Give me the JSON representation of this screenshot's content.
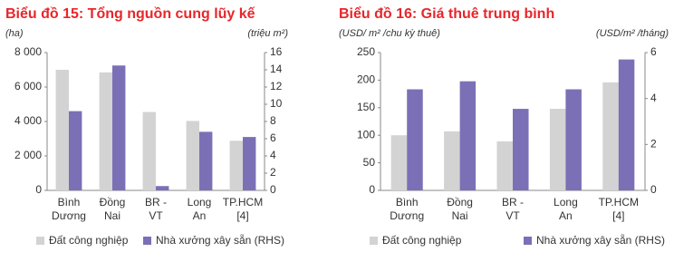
{
  "chart_data": [
    {
      "type": "bar",
      "title": "Biểu đồ 15: Tổng nguồn cung lũy kế",
      "y_label": "(ha)",
      "y2_label": "(triệu m²)",
      "categories": [
        "Bình\nDương",
        "Đồng\nNai",
        "BR -\nVT",
        "Long\nAn",
        "TP.HCM\n[4]"
      ],
      "series": [
        {
          "name": "Đất công nghiệp",
          "color": "#d3d3d3",
          "values": [
            7000,
            6850,
            4550,
            4030,
            2880
          ]
        },
        {
          "name": "Nhà xưởng xây sẵn (RHS)",
          "color": "#7b70b6",
          "axis": "y2",
          "values": [
            9.2,
            14.5,
            0.5,
            6.8,
            6.2
          ]
        }
      ],
      "ylim": [
        0,
        8000
      ],
      "yticks": [
        0,
        {
          "value": 2000,
          "label": "2 000"
        },
        {
          "value": 4000,
          "label": "4 000"
        },
        {
          "value": 6000,
          "label": "6 000"
        },
        {
          "value": 8000,
          "label": "8 000"
        }
      ],
      "y2lim": [
        0,
        16
      ],
      "y2ticks": [
        0,
        2,
        4,
        6,
        8,
        10,
        12,
        14,
        16
      ]
    },
    {
      "type": "bar",
      "title": "Biểu đồ 16: Giá thuê trung bình",
      "y_label": "(USD/ m² /chu kỳ thuê)",
      "y2_label": "(USD/m² /tháng)",
      "categories": [
        "Bình\nDương",
        "Đồng\nNai",
        "BR -\nVT",
        "Long\nAn",
        "TP.HCM\n[4]"
      ],
      "series": [
        {
          "name": "Đất công nghiệp",
          "color": "#d3d3d3",
          "values": [
            100,
            107,
            89,
            148,
            196
          ]
        },
        {
          "name": "Nhà xưởng xây sẵn (RHS)",
          "color": "#7b70b6",
          "axis": "y2",
          "values": [
            4.4,
            4.75,
            3.55,
            4.4,
            5.7
          ]
        }
      ],
      "ylim": [
        0,
        250
      ],
      "yticks": [
        0,
        50,
        100,
        150,
        200,
        250
      ],
      "y2lim": [
        0,
        6
      ],
      "y2ticks": [
        0,
        2,
        4,
        6
      ]
    }
  ]
}
